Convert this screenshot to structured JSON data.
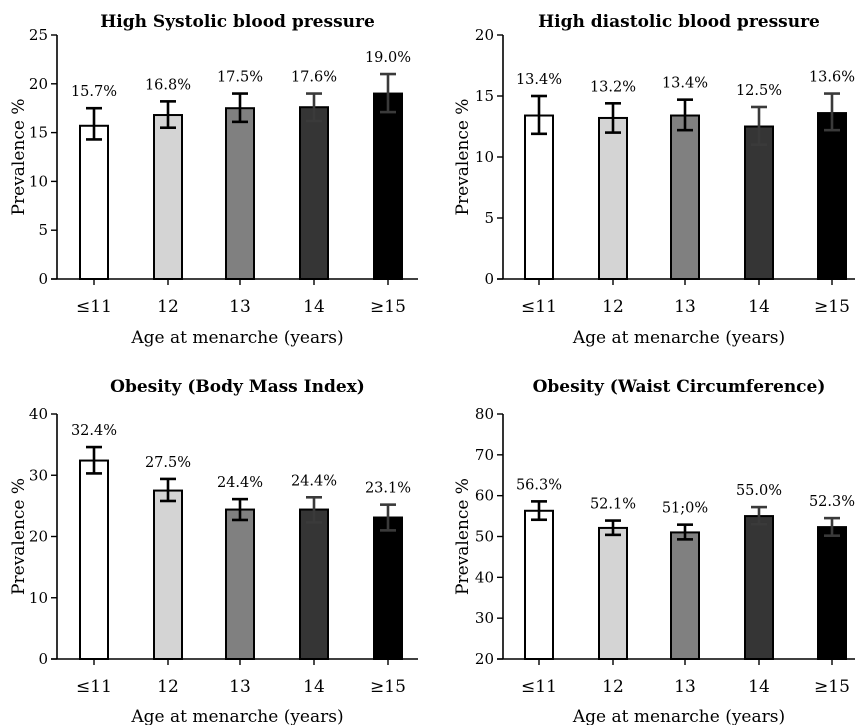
{
  "chart_data": [
    {
      "type": "bar",
      "title": "High Systolic blood pressure",
      "xlabel": "Age at menarche (years)",
      "ylabel": "Prevalence %",
      "categories": [
        "≤11",
        "12",
        "13",
        "14",
        "≥15"
      ],
      "values": [
        15.7,
        16.8,
        17.5,
        17.6,
        19.0
      ],
      "error_low": [
        14.3,
        15.5,
        16.1,
        16.2,
        17.1
      ],
      "error_high": [
        17.5,
        18.2,
        19.0,
        19.0,
        21.0
      ],
      "data_labels": [
        "15.7%",
        "16.8%",
        "17.5%",
        "17.6%",
        "19.0%"
      ],
      "ylim": [
        0,
        25
      ],
      "yticks": [
        0,
        5,
        10,
        15,
        20,
        25
      ],
      "grid": false
    },
    {
      "type": "bar",
      "title": "High diastolic blood pressure",
      "xlabel": "Age at menarche (years)",
      "ylabel": "Prevalence %",
      "categories": [
        "≤11",
        "12",
        "13",
        "14",
        "≥15"
      ],
      "values": [
        13.4,
        13.2,
        13.4,
        12.5,
        13.6
      ],
      "error_low": [
        11.9,
        12.0,
        12.2,
        11.0,
        12.2
      ],
      "error_high": [
        15.0,
        14.4,
        14.7,
        14.1,
        15.2
      ],
      "data_labels": [
        "13.4%",
        "13.2%",
        "13.4%",
        "12.5%",
        "13.6%"
      ],
      "ylim": [
        0,
        20
      ],
      "yticks": [
        0,
        5,
        10,
        15,
        20
      ],
      "grid": false
    },
    {
      "type": "bar",
      "title": "Obesity (Body Mass Index)",
      "xlabel": "Age at menarche (years)",
      "ylabel": "Prevalence %",
      "categories": [
        "≤11",
        "12",
        "13",
        "14",
        "≥15"
      ],
      "values": [
        32.4,
        27.5,
        24.4,
        24.4,
        23.1
      ],
      "error_low": [
        30.3,
        25.8,
        22.7,
        22.3,
        21.0
      ],
      "error_high": [
        34.6,
        29.4,
        26.1,
        26.4,
        25.2
      ],
      "data_labels": [
        "32.4%",
        "27.5%",
        "24.4%",
        "24.4%",
        "23.1%"
      ],
      "ylim": [
        0,
        40
      ],
      "yticks": [
        0,
        10,
        20,
        30,
        40
      ],
      "grid": false
    },
    {
      "type": "bar",
      "title": "Obesity (Waist Circumference)",
      "xlabel": "Age at menarche (years)",
      "ylabel": "Prevalence %",
      "categories": [
        "≤11",
        "12",
        "13",
        "14",
        "≥15"
      ],
      "values": [
        56.3,
        52.1,
        51.0,
        55.0,
        52.3
      ],
      "error_low": [
        54.1,
        50.4,
        49.3,
        53.0,
        50.2
      ],
      "error_high": [
        58.6,
        53.9,
        52.9,
        57.2,
        54.5
      ],
      "data_labels": [
        "56.3%",
        "52.1%",
        "51;0%",
        "55.0%",
        "52.3%"
      ],
      "ylim": [
        20,
        80
      ],
      "yticks": [
        20,
        30,
        40,
        50,
        60,
        70,
        80
      ],
      "grid": false
    }
  ],
  "colors": {
    "bar_fills": [
      "#ffffff",
      "#d4d4d4",
      "#808080",
      "#353535",
      "#000000"
    ],
    "stroke": "#000000",
    "error_bar": "#000000"
  }
}
